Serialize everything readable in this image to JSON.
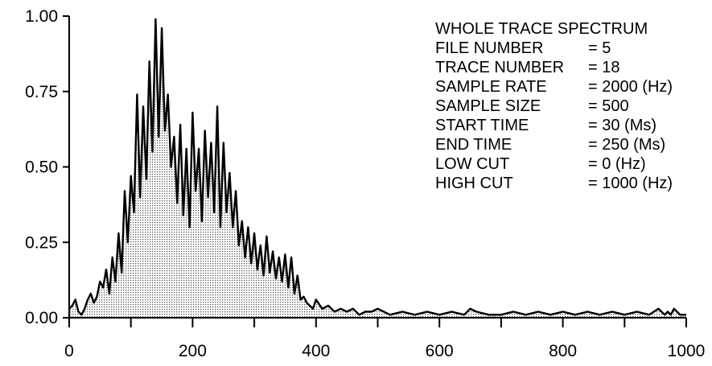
{
  "chart_data": {
    "type": "area",
    "title": "",
    "xlabel": "",
    "ylabel": "",
    "xlim": [
      0,
      1000
    ],
    "ylim": [
      0,
      1
    ],
    "x_ticks": [
      0,
      100,
      200,
      300,
      400,
      500,
      600,
      700,
      800,
      900,
      1000
    ],
    "x_tick_labels": [
      "0",
      "",
      "200",
      "",
      "400",
      "",
      "600",
      "",
      "800",
      "",
      "1000"
    ],
    "y_ticks": [
      0,
      0.25,
      0.5,
      0.75,
      1.0
    ],
    "y_tick_labels": [
      "0.00",
      "0.25",
      "0.50",
      "0.75",
      "1.00"
    ],
    "grid": false,
    "fill": "stippled",
    "series": [
      {
        "x": [
          0,
          5,
          10,
          15,
          20,
          25,
          30,
          35,
          40,
          45,
          50,
          55,
          60,
          65,
          70,
          75,
          80,
          85,
          90,
          95,
          100,
          105,
          110,
          115,
          120,
          125,
          130,
          135,
          140,
          145,
          150,
          155,
          160,
          165,
          170,
          175,
          180,
          185,
          190,
          195,
          200,
          205,
          210,
          215,
          220,
          225,
          230,
          235,
          240,
          245,
          250,
          255,
          260,
          265,
          270,
          275,
          280,
          285,
          290,
          295,
          300,
          305,
          310,
          315,
          320,
          325,
          330,
          335,
          340,
          345,
          350,
          355,
          360,
          365,
          370,
          375,
          380,
          385,
          390,
          395,
          400,
          410,
          420,
          430,
          440,
          450,
          460,
          470,
          480,
          490,
          500,
          520,
          540,
          560,
          580,
          600,
          620,
          640,
          650,
          660,
          680,
          700,
          720,
          740,
          760,
          780,
          800,
          820,
          840,
          860,
          880,
          900,
          920,
          940,
          955,
          960,
          965,
          970,
          975,
          980,
          985,
          990,
          1000
        ],
        "values": [
          0.03,
          0.04,
          0.06,
          0.02,
          0.01,
          0.03,
          0.06,
          0.08,
          0.05,
          0.07,
          0.12,
          0.1,
          0.16,
          0.08,
          0.2,
          0.12,
          0.28,
          0.15,
          0.42,
          0.25,
          0.47,
          0.35,
          0.74,
          0.4,
          0.7,
          0.46,
          0.85,
          0.55,
          0.99,
          0.6,
          0.96,
          0.62,
          0.74,
          0.5,
          0.6,
          0.38,
          0.64,
          0.34,
          0.56,
          0.3,
          0.68,
          0.42,
          0.56,
          0.32,
          0.62,
          0.4,
          0.58,
          0.35,
          0.7,
          0.3,
          0.58,
          0.35,
          0.48,
          0.3,
          0.42,
          0.24,
          0.32,
          0.2,
          0.3,
          0.18,
          0.28,
          0.16,
          0.24,
          0.14,
          0.27,
          0.15,
          0.22,
          0.13,
          0.2,
          0.12,
          0.21,
          0.1,
          0.2,
          0.08,
          0.14,
          0.06,
          0.07,
          0.05,
          0.04,
          0.03,
          0.06,
          0.03,
          0.04,
          0.02,
          0.03,
          0.02,
          0.03,
          0.01,
          0.02,
          0.02,
          0.03,
          0.01,
          0.02,
          0.01,
          0.02,
          0.01,
          0.02,
          0.01,
          0.03,
          0.02,
          0.01,
          0.01,
          0.02,
          0.01,
          0.02,
          0.01,
          0.02,
          0.01,
          0.02,
          0.01,
          0.02,
          0.01,
          0.02,
          0.01,
          0.03,
          0.02,
          0.01,
          0.02,
          0.01,
          0.03,
          0.02,
          0.01,
          0.01
        ]
      }
    ]
  },
  "info": {
    "title": "WHOLE TRACE SPECTRUM",
    "rows": [
      {
        "label": "FILE NUMBER",
        "value": "= 5"
      },
      {
        "label": "TRACE NUMBER",
        "value": "= 18"
      },
      {
        "label": "SAMPLE RATE",
        "value": "= 2000 (Hz)"
      },
      {
        "label": "SAMPLE SIZE",
        "value": "= 500"
      },
      {
        "label": "START TIME",
        "value": "= 30 (Ms)"
      },
      {
        "label": "END TIME",
        "value": "= 250 (Ms)"
      },
      {
        "label": "LOW CUT",
        "value": "= 0 (Hz)"
      },
      {
        "label": "HIGH CUT",
        "value": "= 1000 (Hz)"
      }
    ]
  }
}
